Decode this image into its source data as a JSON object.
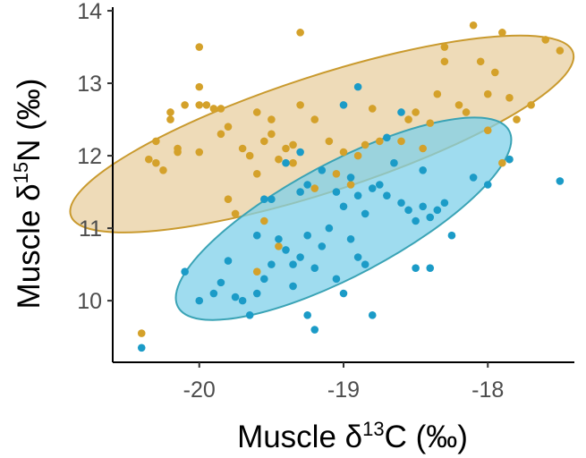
{
  "chart_data": {
    "type": "scatter",
    "xlim": [
      -20.6,
      -17.4
    ],
    "ylim": [
      9.15,
      14.05
    ],
    "x_ticks": [
      -20,
      -19,
      -18
    ],
    "x_tick_labels": [
      "-20",
      "-19",
      "-18"
    ],
    "y_ticks": [
      10,
      11,
      12,
      13,
      14
    ],
    "y_tick_labels": [
      "10",
      "11",
      "12",
      "13",
      "14"
    ],
    "xlabel": {
      "prefix": "Muscle δ",
      "sup": "13",
      "suffix": "C (‰)"
    },
    "ylabel": {
      "prefix": "Muscle δ",
      "sup": "15",
      "suffix": "N (‰)"
    },
    "grid": false,
    "legend": "none",
    "series": [
      {
        "color": "#D4A12A",
        "ellipse_fill": "#E8CFA0",
        "ellipse_stroke": "#C99A2E",
        "ellipse": {
          "cx": -19.15,
          "cy": 12.3,
          "rx": 1.83,
          "ry": 0.8,
          "angle_deg": 18
        },
        "points": [
          [
            -20.4,
            9.55
          ],
          [
            -20.35,
            11.95
          ],
          [
            -20.3,
            11.9
          ],
          [
            -20.25,
            11.8
          ],
          [
            -20.3,
            12.2
          ],
          [
            -20.15,
            12.1
          ],
          [
            -20.15,
            12.05
          ],
          [
            -20.2,
            12.5
          ],
          [
            -20.2,
            12.6
          ],
          [
            -20.1,
            12.7
          ],
          [
            -20.0,
            12.95
          ],
          [
            -20.0,
            12.7
          ],
          [
            -20.0,
            12.05
          ],
          [
            -19.95,
            12.7
          ],
          [
            -19.9,
            12.65
          ],
          [
            -19.85,
            12.65
          ],
          [
            -19.85,
            12.3
          ],
          [
            -19.8,
            12.4
          ],
          [
            -19.7,
            12.1
          ],
          [
            -19.65,
            12.0
          ],
          [
            -19.6,
            12.6
          ],
          [
            -19.8,
            11.4
          ],
          [
            -19.75,
            11.2
          ],
          [
            -19.55,
            12.2
          ],
          [
            -19.5,
            12.3
          ],
          [
            -19.45,
            11.95
          ],
          [
            -19.4,
            12.1
          ],
          [
            -19.35,
            11.9
          ],
          [
            -19.5,
            12.5
          ],
          [
            -19.3,
            12.7
          ],
          [
            -19.35,
            12.15
          ],
          [
            -19.55,
            11.1
          ],
          [
            -19.6,
            10.4
          ],
          [
            -19.45,
            10.75
          ],
          [
            -19.2,
            12.5
          ],
          [
            -19.1,
            12.2
          ],
          [
            -19.0,
            12.05
          ],
          [
            -19.05,
            11.75
          ],
          [
            -18.95,
            11.6
          ],
          [
            -18.9,
            12.0
          ],
          [
            -18.85,
            12.15
          ],
          [
            -18.8,
            12.65
          ],
          [
            -18.75,
            12.2
          ],
          [
            -18.6,
            12.2
          ],
          [
            -18.55,
            12.5
          ],
          [
            -18.5,
            12.6
          ],
          [
            -18.45,
            12.1
          ],
          [
            -18.4,
            12.45
          ],
          [
            -18.35,
            12.85
          ],
          [
            -18.3,
            13.3
          ],
          [
            -18.2,
            12.7
          ],
          [
            -18.15,
            12.6
          ],
          [
            -18.1,
            13.8
          ],
          [
            -18.05,
            13.3
          ],
          [
            -18.0,
            12.85
          ],
          [
            -17.95,
            13.15
          ],
          [
            -17.9,
            13.7
          ],
          [
            -17.85,
            12.8
          ],
          [
            -17.8,
            12.5
          ],
          [
            -17.7,
            12.7
          ],
          [
            -17.6,
            13.6
          ],
          [
            -17.5,
            13.45
          ],
          [
            -17.85,
            11.95
          ],
          [
            -17.9,
            11.9
          ],
          [
            -18.0,
            12.35
          ],
          [
            -20.0,
            13.5
          ],
          [
            -19.3,
            13.7
          ],
          [
            -18.3,
            13.5
          ],
          [
            -19.2,
            11.55
          ],
          [
            -19.6,
            11.75
          ]
        ]
      },
      {
        "color": "#1B9BC7",
        "ellipse_fill": "#7FD0EA",
        "ellipse_stroke": "#3AA3B5",
        "ellipse": {
          "cx": -19.0,
          "cy": 11.13,
          "rx": 1.3,
          "ry": 0.78,
          "angle_deg": 28
        },
        "points": [
          [
            -20.4,
            9.35
          ],
          [
            -20.1,
            10.4
          ],
          [
            -20.0,
            10.0
          ],
          [
            -19.9,
            10.1
          ],
          [
            -19.85,
            10.25
          ],
          [
            -19.8,
            10.55
          ],
          [
            -19.75,
            10.05
          ],
          [
            -19.7,
            10.0
          ],
          [
            -19.65,
            9.8
          ],
          [
            -19.6,
            10.1
          ],
          [
            -19.55,
            10.3
          ],
          [
            -19.5,
            10.5
          ],
          [
            -19.45,
            10.85
          ],
          [
            -19.4,
            10.7
          ],
          [
            -19.35,
            10.2
          ],
          [
            -19.3,
            10.6
          ],
          [
            -19.25,
            10.9
          ],
          [
            -19.2,
            10.45
          ],
          [
            -19.15,
            10.75
          ],
          [
            -19.1,
            11.0
          ],
          [
            -19.05,
            10.3
          ],
          [
            -19.0,
            10.1
          ],
          [
            -18.95,
            10.85
          ],
          [
            -18.9,
            10.6
          ],
          [
            -18.85,
            10.5
          ],
          [
            -18.8,
            9.8
          ],
          [
            -19.2,
            9.6
          ],
          [
            -19.25,
            9.8
          ],
          [
            -19.5,
            11.4
          ],
          [
            -19.55,
            11.4
          ],
          [
            -19.3,
            11.5
          ],
          [
            -19.25,
            11.6
          ],
          [
            -19.15,
            11.8
          ],
          [
            -19.05,
            11.5
          ],
          [
            -19.0,
            11.3
          ],
          [
            -18.95,
            11.7
          ],
          [
            -18.9,
            11.45
          ],
          [
            -18.85,
            11.2
          ],
          [
            -18.8,
            11.55
          ],
          [
            -18.75,
            11.6
          ],
          [
            -18.7,
            11.45
          ],
          [
            -18.65,
            11.9
          ],
          [
            -18.6,
            11.35
          ],
          [
            -18.55,
            11.25
          ],
          [
            -18.5,
            11.1
          ],
          [
            -18.45,
            11.3
          ],
          [
            -18.4,
            11.15
          ],
          [
            -18.35,
            11.25
          ],
          [
            -18.3,
            11.35
          ],
          [
            -18.25,
            10.9
          ],
          [
            -18.1,
            11.7
          ],
          [
            -18.0,
            11.6
          ],
          [
            -17.5,
            11.65
          ],
          [
            -17.85,
            11.95
          ],
          [
            -18.9,
            12.95
          ],
          [
            -18.6,
            12.6
          ],
          [
            -19.0,
            12.7
          ],
          [
            -18.7,
            12.25
          ],
          [
            -19.4,
            11.9
          ],
          [
            -18.5,
            10.45
          ],
          [
            -18.4,
            10.45
          ],
          [
            -18.45,
            11.8
          ],
          [
            -19.3,
            12.05
          ],
          [
            -19.6,
            10.9
          ],
          [
            -19.35,
            10.5
          ]
        ]
      }
    ]
  }
}
